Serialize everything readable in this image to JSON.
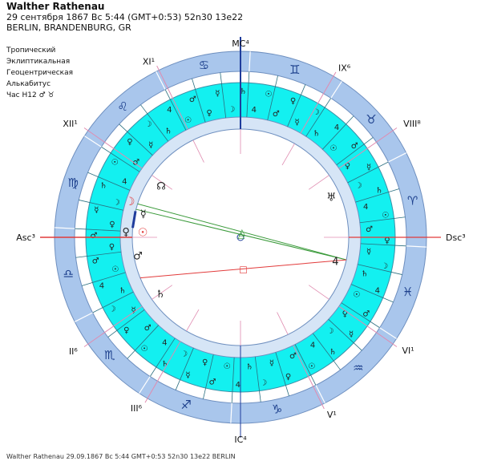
{
  "header": {
    "name": "Walther Rathenau",
    "line1": "29 сентября 1867  Вс   5:44 (GMT+0:53) 52n30  13e22",
    "line2": "BERLIN, BRANDENBURG, GR"
  },
  "options": [
    "Тропический",
    "Эклиптикальная",
    "Геоцентрическая",
    "Алькабитус",
    "Час H12  ♂ ♉"
  ],
  "houses": {
    "asc": "Asc³",
    "mc": "MC⁴",
    "dsc": "Dsc³",
    "ic": "IC⁴",
    "ii": "II⁶",
    "iii": "III⁶",
    "v": "V¹",
    "vi": "VI¹",
    "viii": "VIII⁸",
    "ix": "IX⁶",
    "xi": "XI¹",
    "xii": "XII¹"
  },
  "zodiac": [
    "♈",
    "♉",
    "♊",
    "♋",
    "♌",
    "♍",
    "♎",
    "♏",
    "♐",
    "♑",
    "♒",
    "♓"
  ],
  "planets": {
    "sun": "☉",
    "venus": "♀",
    "mercury": "☿",
    "moon": "☽",
    "mars": "♂",
    "saturn": "♄",
    "jupiter": "4",
    "node": "☊",
    "uranus": "♅"
  },
  "aspect_marks": [
    "△",
    "△",
    "□"
  ],
  "colors": {
    "outer_ring": "#a9c6ec",
    "inner_ring": "#d6e5f6",
    "cyan_band": "#13f0f0",
    "red_line": "#e23b3b",
    "green_line": "#3a9a3a",
    "blue_line": "#1f3c9c"
  },
  "footer": "Walther Rathenau  29.09.1867 Вс 5:44  GMT+0:53  52n30 13e22  BERLIN"
}
